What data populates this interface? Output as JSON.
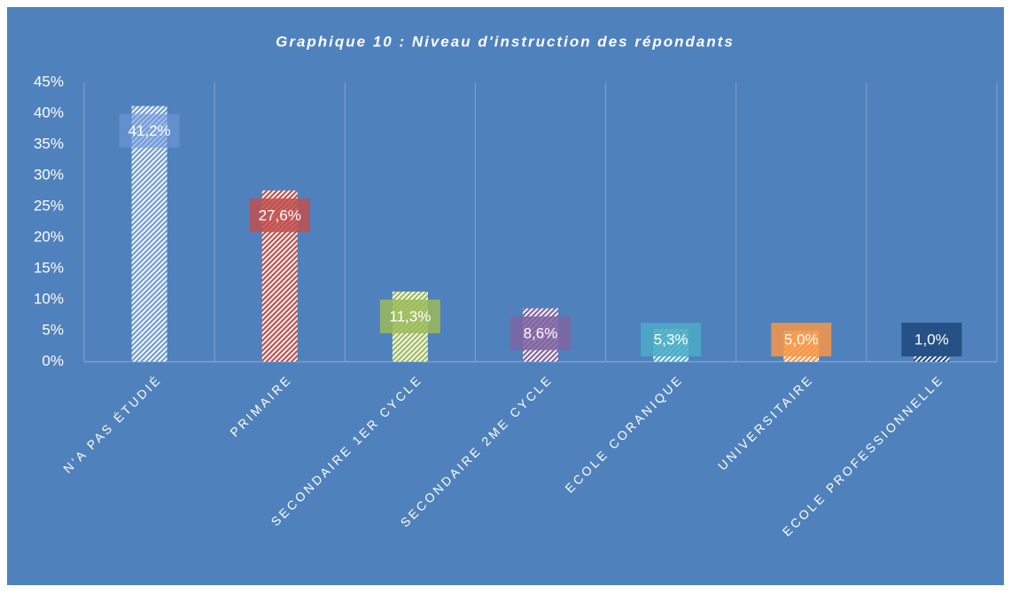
{
  "chart_data": {
    "type": "bar",
    "title": "Graphique 10 : Niveau d'instruction des répondants",
    "categories": [
      "N’A PAS ÉTUDIÉ",
      "PRIMAIRE",
      "SECONDAIRE 1ER CYCLE",
      "SECONDAIRE 2ME CYCLE",
      "ECOLE CORANIQUE",
      "UNIVERSITAIRE",
      "ECOLE PROFESSIONNELLE"
    ],
    "values": [
      41.2,
      27.6,
      11.3,
      8.6,
      5.3,
      5.0,
      1.0
    ],
    "value_labels": [
      "41,2%",
      "27,6%",
      "11,3%",
      "8,6%",
      "5,3%",
      "5,0%",
      "1,0%"
    ],
    "colors": [
      "#6f9ad8",
      "#c0504d",
      "#9bbb59",
      "#8064a2",
      "#4bacc6",
      "#f79646",
      "#1f497d"
    ],
    "ylim": [
      0,
      45
    ],
    "yticks": [
      {
        "value": 0,
        "label": "0%"
      },
      {
        "value": 5,
        "label": "5%"
      },
      {
        "value": 10,
        "label": "10%"
      },
      {
        "value": 15,
        "label": "15%"
      },
      {
        "value": 20,
        "label": "20%"
      },
      {
        "value": 25,
        "label": "25%"
      },
      {
        "value": 30,
        "label": "30%"
      },
      {
        "value": 35,
        "label": "35%"
      },
      {
        "value": 40,
        "label": "40%"
      },
      {
        "value": 45,
        "label": "45%"
      }
    ],
    "grid": true
  }
}
